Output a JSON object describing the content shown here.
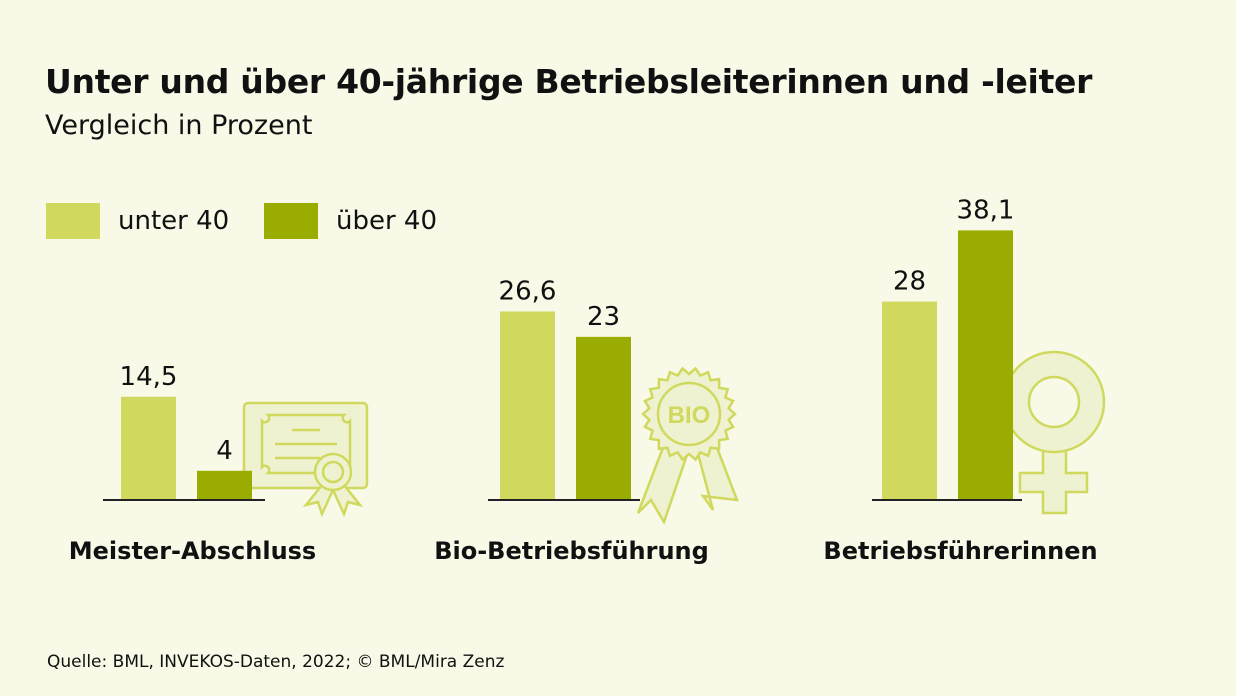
{
  "chart_data": {
    "type": "bar",
    "title": "Unter und über 40-jährige Betriebsleiterinnen und -leiter",
    "subtitle": "Vergleich in Prozent",
    "categories": [
      "Meister-Abschluss",
      "Bio-Betriebsführung",
      "Betriebsführerinnen"
    ],
    "series": [
      {
        "name": "unter 40",
        "values": [
          14.5,
          26.6,
          28
        ],
        "labels": [
          "14,5",
          "26,6",
          "28"
        ],
        "color": "#d0d95e"
      },
      {
        "name": "über 40",
        "values": [
          4,
          23,
          38.1
        ],
        "labels": [
          "4",
          "23",
          "38,1"
        ],
        "color": "#9aac00"
      }
    ],
    "legend": "top-left",
    "grid": false,
    "icons": [
      "certificate-icon",
      "bio-rosette-icon",
      "female-symbol-icon"
    ],
    "icon_text": "BIO"
  },
  "source": "Quelle: BML, INVEKOS-Daten, 2022;   © BML/Mira Zenz"
}
